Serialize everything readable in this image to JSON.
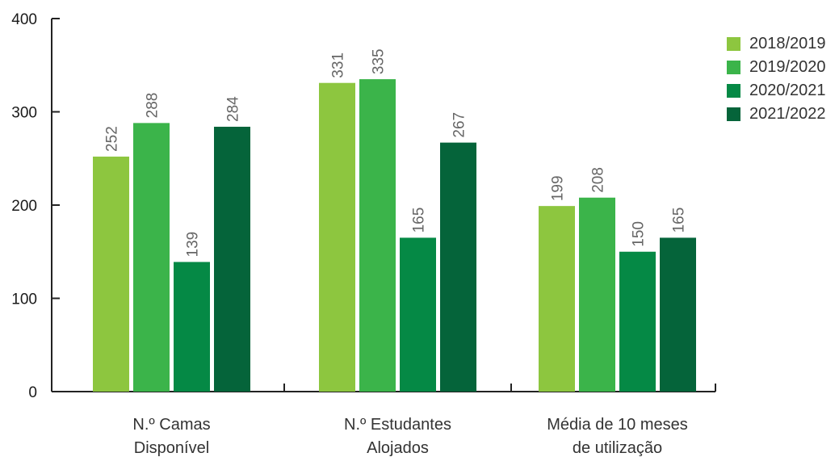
{
  "chart_data": {
    "type": "bar",
    "categories": [
      [
        "N.º Camas",
        "Disponível"
      ],
      [
        "N.º Estudantes",
        "Alojados"
      ],
      [
        "Média de 10 meses",
        "de utilização"
      ]
    ],
    "series": [
      {
        "name": "2018/2019",
        "color": "#8dc63f",
        "values": [
          252,
          331,
          199
        ]
      },
      {
        "name": "2019/2020",
        "color": "#3bb44a",
        "values": [
          288,
          335,
          208
        ]
      },
      {
        "name": "2020/2021",
        "color": "#058945",
        "values": [
          139,
          165,
          150
        ]
      },
      {
        "name": "2021/2022",
        "color": "#05643a",
        "values": [
          284,
          267,
          165
        ]
      }
    ],
    "yticks": [
      0,
      100,
      200,
      300,
      400
    ],
    "ylim": [
      0,
      400
    ],
    "grid": false,
    "legend_position": "top-right"
  }
}
